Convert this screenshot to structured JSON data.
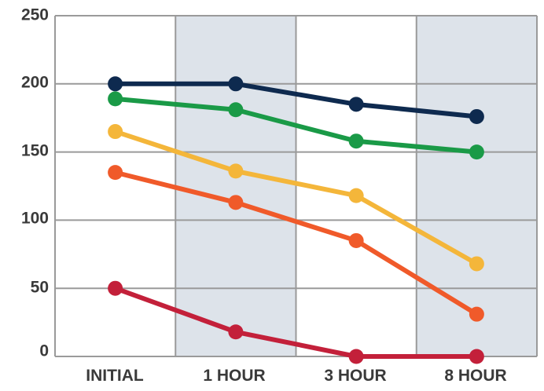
{
  "chart_data": {
    "type": "line",
    "categories": [
      "INITIAL",
      "1 HOUR",
      "3 HOUR",
      "8 HOUR"
    ],
    "ylim": [
      0,
      250
    ],
    "yticks": [
      "0",
      "50",
      "100",
      "150",
      "200",
      "250"
    ],
    "grid": true,
    "shaded_columns": [
      1,
      3
    ],
    "colors": {
      "shade": "#dde3ea",
      "grid": "#9a9a9a"
    },
    "series": [
      {
        "color": "#0e2a4f",
        "values": [
          200,
          200,
          185,
          176
        ]
      },
      {
        "color": "#1a9a47",
        "values": [
          189,
          181,
          158,
          150
        ]
      },
      {
        "color": "#f4b63a",
        "values": [
          165,
          136,
          118,
          68
        ]
      },
      {
        "color": "#f05a2a",
        "values": [
          135,
          113,
          85,
          31
        ]
      },
      {
        "color": "#c3203a",
        "values": [
          50,
          18,
          0,
          0
        ]
      }
    ]
  }
}
